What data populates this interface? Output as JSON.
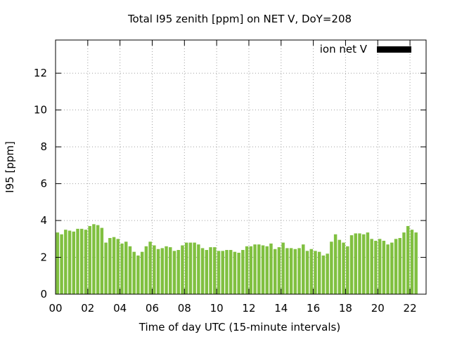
{
  "chart_data": {
    "type": "bar",
    "title": "Total I95 zenith [ppm] on NET V, DoY=208",
    "xlabel": "Time of day UTC (15-minute intervals)",
    "ylabel": "I95 [ppm]",
    "xlim": [
      0,
      23
    ],
    "ylim": [
      0,
      13.8
    ],
    "x_ticks": [
      "00",
      "02",
      "04",
      "06",
      "08",
      "10",
      "12",
      "14",
      "16",
      "18",
      "20",
      "22"
    ],
    "y_ticks": [
      "0",
      "2",
      "4",
      "6",
      "8",
      "10",
      "12"
    ],
    "grid": true,
    "legend_position": "top-right",
    "series": [
      {
        "name": "ion net V",
        "color": "#80c040",
        "legend_color": "#000000",
        "x_start": 0,
        "x_step": 0.25,
        "values": [
          3.35,
          3.25,
          3.5,
          3.45,
          3.4,
          3.55,
          3.55,
          3.5,
          3.7,
          3.8,
          3.75,
          3.6,
          2.8,
          3.05,
          3.1,
          3.0,
          2.75,
          2.85,
          2.6,
          2.3,
          2.1,
          2.3,
          2.6,
          2.85,
          2.65,
          2.45,
          2.5,
          2.6,
          2.55,
          2.35,
          2.4,
          2.65,
          2.8,
          2.8,
          2.8,
          2.7,
          2.5,
          2.4,
          2.55,
          2.55,
          2.35,
          2.35,
          2.4,
          2.4,
          2.3,
          2.25,
          2.4,
          2.6,
          2.6,
          2.7,
          2.7,
          2.65,
          2.6,
          2.75,
          2.45,
          2.55,
          2.8,
          2.5,
          2.5,
          2.45,
          2.5,
          2.7,
          2.35,
          2.45,
          2.35,
          2.3,
          2.1,
          2.2,
          2.85,
          3.25,
          2.95,
          2.8,
          2.6,
          3.2,
          3.3,
          3.3,
          3.25,
          3.35,
          3.0,
          2.9,
          3.0,
          2.9,
          2.7,
          2.8,
          3.0,
          3.05,
          3.35,
          3.7,
          3.5,
          3.35
        ]
      }
    ]
  }
}
